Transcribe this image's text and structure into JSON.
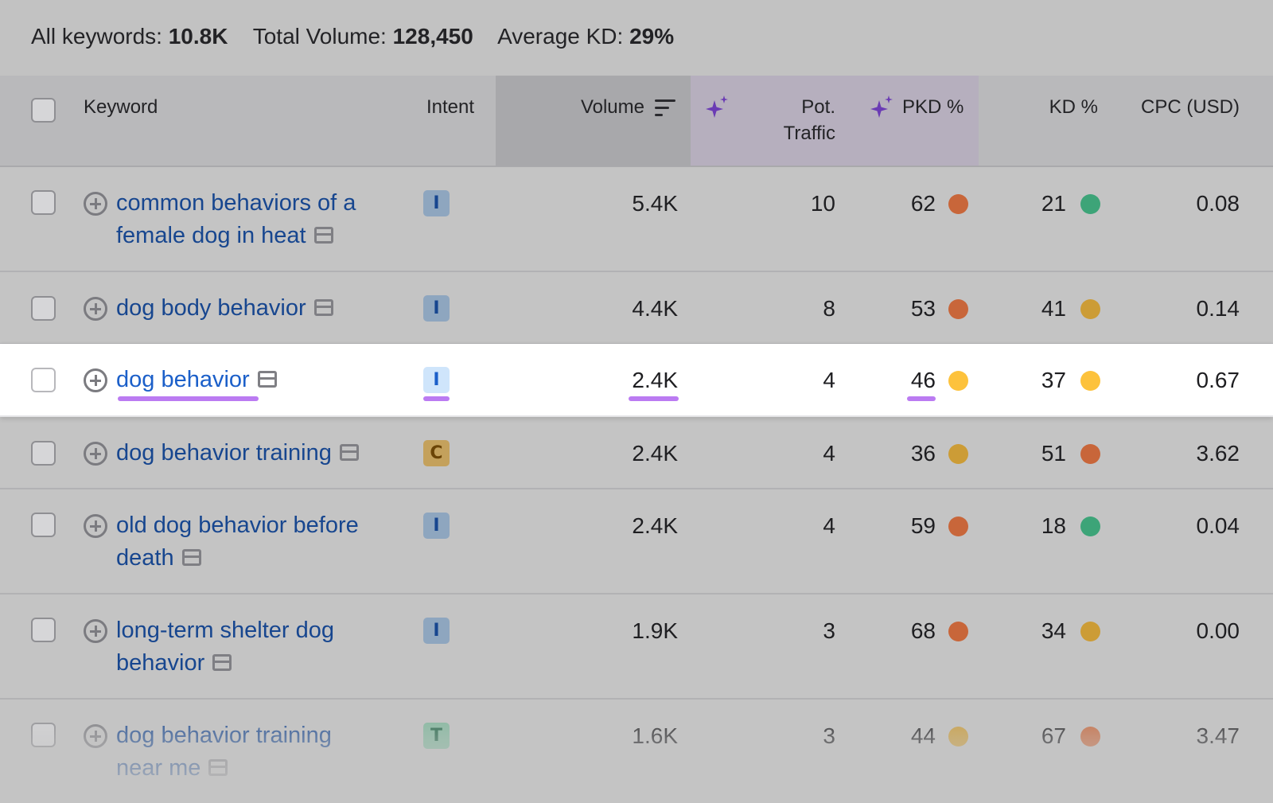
{
  "summary": {
    "all_keywords_label": "All keywords:",
    "all_keywords_value": "10.8K",
    "total_volume_label": "Total Volume:",
    "total_volume_value": "128,450",
    "average_kd_label": "Average KD:",
    "average_kd_value": "29%"
  },
  "columns": {
    "keyword": "Keyword",
    "intent": "Intent",
    "volume": "Volume",
    "pot_traffic_line1": "Pot.",
    "pot_traffic_line2": "Traffic",
    "pkd": "PKD %",
    "kd": "KD %",
    "cpc": "CPC (USD)"
  },
  "colors": {
    "dot_red": "#c8663a",
    "dot_orange_yellow": "#cc9c36",
    "dot_yellow": "#fdc23c",
    "dot_green": "#3da478",
    "highlight_underline": "#bb7bf2",
    "keyword_link": "#17468f"
  },
  "rows": [
    {
      "keyword_line1": "common behaviors of a",
      "keyword_line2": "female dog in heat",
      "intent": "I",
      "volume": "5.4K",
      "pot_traffic": "10",
      "pkd": "62",
      "kd": "21",
      "cpc": "0.08"
    },
    {
      "keyword_line1": "dog body behavior",
      "keyword_line2": "",
      "intent": "I",
      "volume": "4.4K",
      "pot_traffic": "8",
      "pkd": "53",
      "kd": "41",
      "cpc": "0.14"
    },
    {
      "keyword_line1": "dog behavior",
      "keyword_line2": "",
      "intent": "I",
      "volume": "2.4K",
      "pot_traffic": "4",
      "pkd": "46",
      "kd": "37",
      "cpc": "0.67"
    },
    {
      "keyword_line1": "dog behavior training",
      "keyword_line2": "",
      "intent": "C",
      "volume": "2.4K",
      "pot_traffic": "4",
      "pkd": "36",
      "kd": "51",
      "cpc": "3.62"
    },
    {
      "keyword_line1": "old dog behavior before",
      "keyword_line2": "death",
      "intent": "I",
      "volume": "2.4K",
      "pot_traffic": "4",
      "pkd": "59",
      "kd": "18",
      "cpc": "0.04"
    },
    {
      "keyword_line1": "long-term shelter dog",
      "keyword_line2": "behavior",
      "intent": "I",
      "volume": "1.9K",
      "pot_traffic": "3",
      "pkd": "68",
      "kd": "34",
      "cpc": "0.00"
    },
    {
      "keyword_line1": "dog behavior training",
      "keyword_line2": "near me",
      "intent": "T",
      "volume": "1.6K",
      "pot_traffic": "3",
      "pkd": "44",
      "kd": "67",
      "cpc": "3.47"
    }
  ]
}
